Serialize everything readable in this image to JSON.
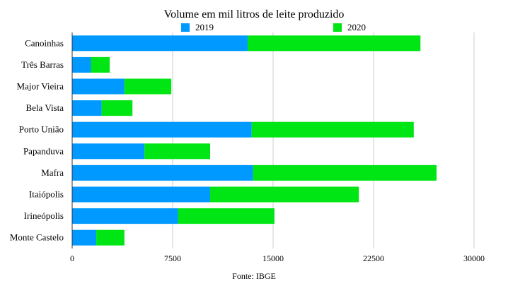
{
  "chart_data": {
    "type": "bar",
    "orientation": "horizontal",
    "stacked": true,
    "title": "Volume em mil litros de leite produzido",
    "categories": [
      "Canoinhas",
      "Três Barras",
      "Major Vieira",
      "Bela Vista",
      "Porto União",
      "Papanduva",
      "Mafra",
      "Itaiópolis",
      "Irineópolis",
      "Monte Castelo"
    ],
    "series": [
      {
        "name": "2019",
        "color": "#0099ff",
        "values": [
          13100,
          1400,
          3900,
          2200,
          13400,
          5400,
          13500,
          10300,
          7900,
          1800
        ]
      },
      {
        "name": "2020",
        "color": "#00e514",
        "values": [
          12900,
          1400,
          3500,
          2300,
          12100,
          4900,
          13700,
          11100,
          7200,
          2100
        ]
      }
    ],
    "xlim": [
      0,
      30000
    ],
    "xticks": [
      "0",
      "7500",
      "15000",
      "22500",
      "30000"
    ],
    "xtick_values": [
      0,
      7500,
      15000,
      22500,
      30000
    ],
    "grid": "vertical",
    "legend": "top",
    "source": "Fonte: IBGE"
  }
}
